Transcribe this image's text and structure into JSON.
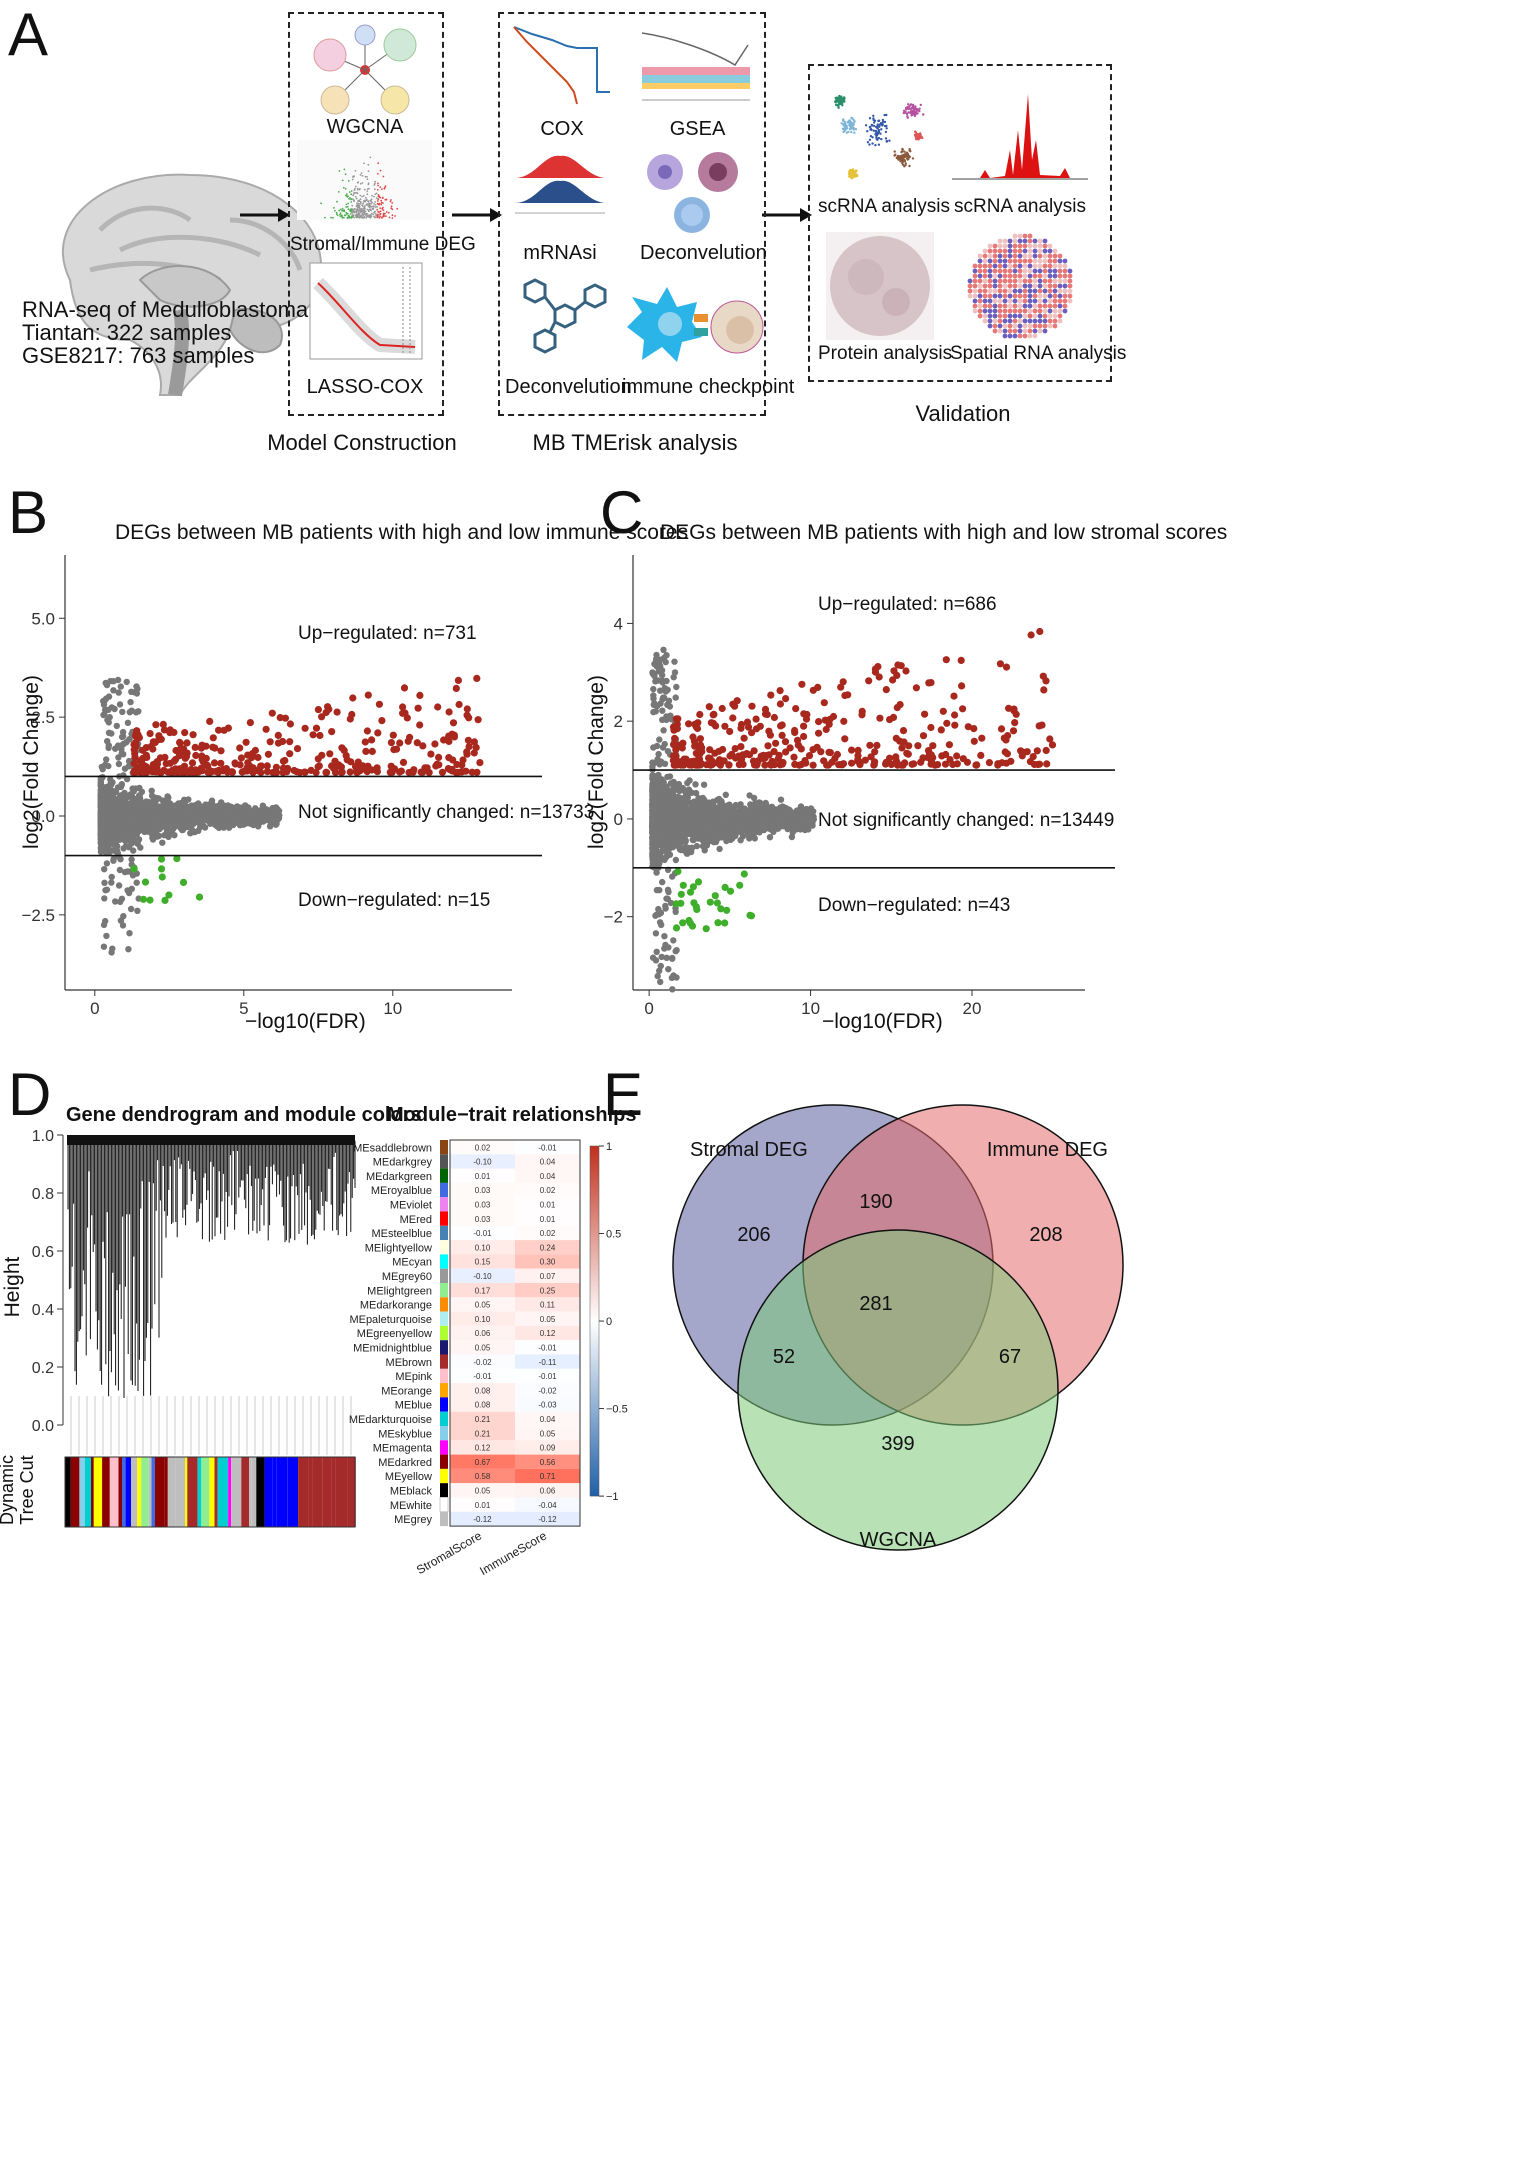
{
  "panelA": {
    "letter": "A",
    "rna_title": "RNA-seq of Medulloblastoma:",
    "rna_line1": "Tiantan: 322 samples",
    "rna_line2": "GSE8217: 763 samples",
    "model": {
      "wgcna": "WGCNA",
      "deg": "Stromal/Immune DEG",
      "lasso": "LASSO-COX",
      "caption": "Model  Construction"
    },
    "tme": {
      "cox": "COX",
      "gsea": "GSEA",
      "mrnasi": "mRNAsi",
      "deconv1": "Deconvelution",
      "deconv2": "Deconvelution",
      "checkpoint": "immune checkpoint",
      "caption": "MB TMErisk analysis"
    },
    "validation": {
      "sc1": "scRNA analysis",
      "sc2": "scRNA analysis",
      "protein": "Protein analysis",
      "spatial": "Spatial RNA analysis",
      "caption": "Validation"
    }
  },
  "panelB": {
    "letter": "B",
    "chart_data": {
      "type": "scatter",
      "title": "DEGs between MB patients with high and low immune scores",
      "xlabel": "−log10(FDR)",
      "ylabel": "log2(Fold Change)",
      "xlim": [
        -1,
        14
      ],
      "ylim": [
        -4.4,
        6.6
      ],
      "xticks": [
        0,
        5,
        10
      ],
      "yticks": [
        -2.5,
        0.0,
        2.5,
        5.0
      ],
      "ytick_labels": [
        "−2.5",
        "0.0",
        "2.5",
        "5.0"
      ],
      "hlines": [
        1,
        -1
      ],
      "annotations": {
        "up": "Up−regulated: n=731",
        "ns": "Not significantly changed: n=13733",
        "down": "Down−regulated: n=15"
      },
      "series": [
        {
          "name": "Up-regulated",
          "color": "#a8281e",
          "count": 731
        },
        {
          "name": "Not significantly changed",
          "color": "#777777",
          "count": 13733
        },
        {
          "name": "Down-regulated",
          "color": "#3fae2a",
          "count": 15
        }
      ]
    }
  },
  "panelC": {
    "letter": "C",
    "chart_data": {
      "type": "scatter",
      "title": "DEGs between MB patients with high and low stromal scores",
      "xlabel": "−log10(FDR)",
      "ylabel": "log2(Fold Change)",
      "xlim": [
        -1,
        27
      ],
      "ylim": [
        -3.5,
        5.4
      ],
      "xticks": [
        0,
        10,
        20
      ],
      "yticks": [
        -2,
        0,
        2,
        4
      ],
      "ytick_labels": [
        "−2",
        "0",
        "2",
        "4"
      ],
      "hlines": [
        1,
        -1
      ],
      "annotations": {
        "up": "Up−regulated: n=686",
        "ns": "Not significantly changed: n=13449",
        "down": "Down−regulated: n=43"
      },
      "series": [
        {
          "name": "Up-regulated",
          "color": "#a8281e",
          "count": 686
        },
        {
          "name": "Not significantly changed",
          "color": "#777777",
          "count": 13449
        },
        {
          "name": "Down-regulated",
          "color": "#3fae2a",
          "count": 43
        }
      ]
    }
  },
  "panelD": {
    "letter": "D",
    "dendro_title": "Gene dendrogram and module colors",
    "dendro_ylabel": "Height",
    "dendro_yticks": [
      "0.0",
      "0.2",
      "0.4",
      "0.6",
      "0.8",
      "1.0"
    ],
    "tree_cut_label1": "Dynamic",
    "tree_cut_label2": "Tree Cut",
    "heat_title": "Module−trait relationships",
    "traits": [
      "StromalScore",
      "ImmuneScore"
    ],
    "colorbar_ticks": [
      "1",
      "0.5",
      "0",
      "−0.5",
      "−1"
    ],
    "modules": [
      {
        "name": "MEsaddlebrown",
        "color": "#8b4513",
        "r": [
          0.02,
          -0.01
        ]
      },
      {
        "name": "MEdarkgrey",
        "color": "#555555",
        "r": [
          -0.1,
          0.04
        ]
      },
      {
        "name": "MEdarkgreen",
        "color": "#006400",
        "r": [
          0.01,
          0.04
        ]
      },
      {
        "name": "MEroyalblue",
        "color": "#4169e1",
        "r": [
          0.03,
          0.02
        ]
      },
      {
        "name": "MEviolet",
        "color": "#ee82ee",
        "r": [
          0.03,
          0.01
        ]
      },
      {
        "name": "MEred",
        "color": "#ff0000",
        "r": [
          0.03,
          0.01
        ]
      },
      {
        "name": "MEsteelblue",
        "color": "#4682b4",
        "r": [
          -0.01,
          0.02
        ]
      },
      {
        "name": "MElightyellow",
        "color": "#ffffe0",
        "r": [
          0.1,
          0.24
        ]
      },
      {
        "name": "MEcyan",
        "color": "#00ffff",
        "r": [
          0.15,
          0.3
        ]
      },
      {
        "name": "MEgrey60",
        "color": "#999999",
        "r": [
          -0.1,
          0.07
        ]
      },
      {
        "name": "MElightgreen",
        "color": "#90ee90",
        "r": [
          0.17,
          0.25
        ]
      },
      {
        "name": "MEdarkorange",
        "color": "#ff8c00",
        "r": [
          0.05,
          0.11
        ]
      },
      {
        "name": "MEpaleturquoise",
        "color": "#afeeee",
        "r": [
          0.1,
          0.05
        ]
      },
      {
        "name": "MEgreenyellow",
        "color": "#adff2f",
        "r": [
          0.06,
          0.12
        ]
      },
      {
        "name": "MEmidnightblue",
        "color": "#191970",
        "r": [
          0.05,
          -0.01
        ]
      },
      {
        "name": "MEbrown",
        "color": "#a52a2a",
        "r": [
          -0.02,
          -0.11
        ]
      },
      {
        "name": "MEpink",
        "color": "#ffc0cb",
        "r": [
          -0.01,
          -0.01
        ]
      },
      {
        "name": "MEorange",
        "color": "#ffa500",
        "r": [
          0.08,
          -0.02
        ]
      },
      {
        "name": "MEblue",
        "color": "#0000ff",
        "r": [
          0.08,
          -0.03
        ]
      },
      {
        "name": "MEdarkturquoise",
        "color": "#00ced1",
        "r": [
          0.21,
          0.04
        ]
      },
      {
        "name": "MEskyblue",
        "color": "#87ceeb",
        "r": [
          0.21,
          0.05
        ]
      },
      {
        "name": "MEmagenta",
        "color": "#ff00ff",
        "r": [
          0.12,
          0.09
        ]
      },
      {
        "name": "MEdarkred",
        "color": "#8b0000",
        "r": [
          0.67,
          0.56
        ]
      },
      {
        "name": "MEyellow",
        "color": "#ffff00",
        "r": [
          0.58,
          0.71
        ]
      },
      {
        "name": "MEblack",
        "color": "#000000",
        "r": [
          0.05,
          0.06
        ]
      },
      {
        "name": "MEwhite",
        "color": "#ffffff",
        "r": [
          0.01,
          -0.04
        ]
      },
      {
        "name": "MEgrey",
        "color": "#bebebe",
        "r": [
          -0.12,
          -0.12
        ]
      }
    ]
  },
  "panelE": {
    "letter": "E",
    "chart_data": {
      "type": "venn",
      "sets": [
        {
          "name": "Stromal DEG",
          "color": "#5a5f9e"
        },
        {
          "name": "Immune DEG",
          "color": "#e36b6b"
        },
        {
          "name": "WGCNA",
          "color": "#7dc97a"
        }
      ],
      "regions": {
        "stromal_only": 206,
        "immune_only": 208,
        "wgcna_only": 399,
        "stromal_immune": 190,
        "stromal_wgcna": 52,
        "immune_wgcna": 67,
        "all": 281
      }
    }
  }
}
